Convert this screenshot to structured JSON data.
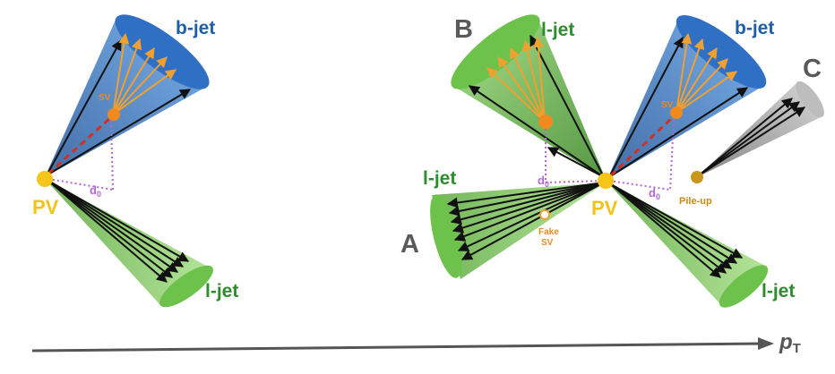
{
  "labels": {
    "b_jet": "b-jet",
    "l_jet": "l-jet",
    "pv": "PV",
    "sv": "SV",
    "d0_main": "d",
    "d0_sub": "0",
    "fake_sv_line1": "Fake",
    "fake_sv_line2": "SV",
    "pile_up": "Pile-up",
    "label_a": "A",
    "label_b": "B",
    "label_c": "C",
    "pt_main": "p",
    "pt_sub": "T"
  },
  "colors": {
    "b_jet_cone": "#4f8fd6",
    "l_jet_cone": "#7fcf5c",
    "pileup_cone": "#a8a8a8",
    "track": "#111111",
    "sv_track": "#f0a030",
    "pv_dot": "#f5c518",
    "sv_dot": "#f08a1c",
    "flight_line": "#d03020",
    "impact_line": "#b565d6"
  }
}
